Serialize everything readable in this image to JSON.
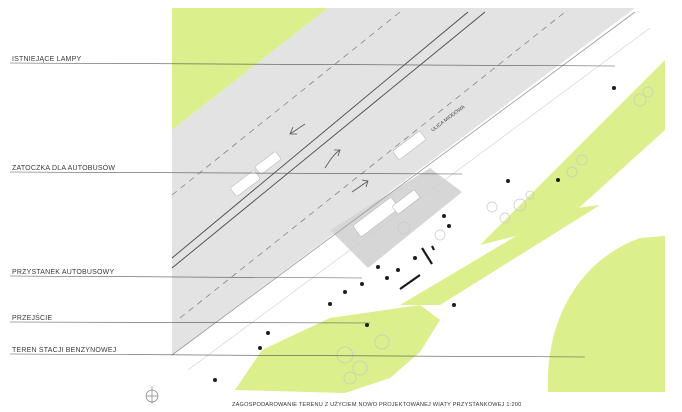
{
  "labels": {
    "lamps": "ISTNIEJĄCE LAMPY",
    "bay": "ZATOCZKA DLA AUTOBUSÓW",
    "stop": "PRZYSTANEK AUTOBUSOWY",
    "crossing": "PRZEJŚCIE",
    "station": "TEREN STACJI BENZYNOWEJ"
  },
  "street_name": "ULICA MIODOWA",
  "caption": "ZAGOSPODAROWANIE TERENU Z UŻYCIEM NOWO PROJEKTOWANEJ WIATY PRZYSTANKOWEJ 1:200",
  "colors": {
    "grass": "#dbef8c",
    "road": "#e3e3e3",
    "line": "#4a4a4a"
  },
  "icons": [
    "north-arrow-icon",
    "traffic-arrow-icon",
    "bus-icon",
    "tree-icon",
    "person-icon"
  ]
}
